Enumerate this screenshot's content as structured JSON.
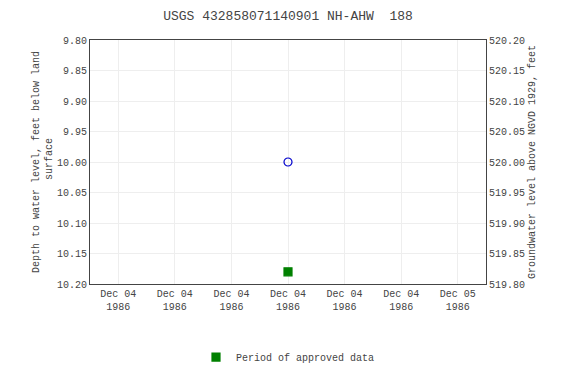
{
  "chart_data": {
    "type": "scatter",
    "title": "USGS 432858071140901 NH-AHW  188",
    "y_label": "Depth to water level, feet below land\n surface",
    "y2_label": "Groundwater level above NGVD 1929, feet",
    "categories": [
      "Dec 04\n1986",
      "Dec 04\n1986",
      "Dec 04\n1986",
      "Dec 04\n1986",
      "Dec 04\n1986",
      "Dec 04\n1986",
      "Dec 05\n1986"
    ],
    "series": [
      {
        "color": "#0000cc",
        "marker": "circle-open",
        "values": [
          null,
          null,
          null,
          10.0,
          null,
          null,
          null
        ]
      },
      {
        "name": "Period of approved data",
        "color": "#008000",
        "marker": "square",
        "values": [
          null,
          null,
          null,
          10.18,
          null,
          null,
          null
        ]
      }
    ],
    "ylim": [
      10.2,
      9.8
    ],
    "yticks": [
      {
        "value": 9.8,
        "label": "9.80"
      },
      {
        "value": 9.85,
        "label": "9.85"
      },
      {
        "value": 9.9,
        "label": "9.90"
      },
      {
        "value": 9.95,
        "label": "9.95"
      },
      {
        "value": 10,
        "label": "10.00"
      },
      {
        "value": 10.05,
        "label": "10.05"
      },
      {
        "value": 10.1,
        "label": "10.10"
      },
      {
        "value": 10.15,
        "label": "10.15"
      },
      {
        "value": 10.2,
        "label": "10.20"
      }
    ],
    "y2lim": [
      519.8,
      520.2
    ],
    "y2ticks": [
      {
        "value": 519.8,
        "label": "519.80"
      },
      {
        "value": 519.85,
        "label": "519.85"
      },
      {
        "value": 519.9,
        "label": "519.90"
      },
      {
        "value": 519.95,
        "label": "519.95"
      },
      {
        "value": 520,
        "label": "520.00"
      },
      {
        "value": 520.05,
        "label": "520.05"
      },
      {
        "value": 520.1,
        "label": "520.10"
      },
      {
        "value": 520.15,
        "label": "520.15"
      },
      {
        "value": 520.2,
        "label": "520.20"
      }
    ],
    "grid": true,
    "legend": "bottom"
  }
}
